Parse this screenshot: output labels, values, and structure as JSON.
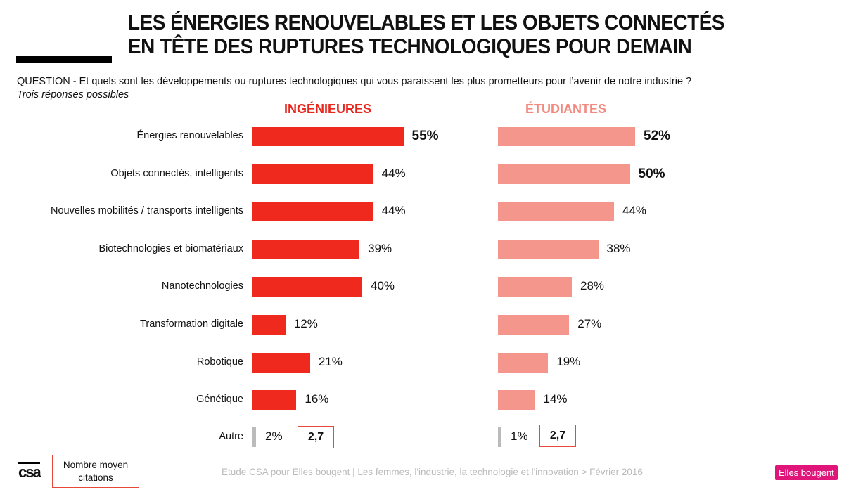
{
  "title_line1": "LES ÉNERGIES RENOUVELABLES ET LES OBJETS CONNECTÉS",
  "title_line2": "EN TÊTE DES RUPTURES TECHNOLOGIQUES POUR DEMAIN",
  "question": "QUESTION - Et quels sont les développements ou ruptures technologiques qui vous paraissent les plus prometteurs pour l’avenir de notre industrie ?",
  "subtitle": "Trois réponses possibles",
  "footer": "Etude CSA pour Elles bougent | Les femmes, l'industrie, la technologie et l'innovation > Février 2016",
  "legend_box": "Nombre moyen citations",
  "logo_left": "csa",
  "logo_right": "Elles bougent",
  "chart_data": {
    "type": "bar",
    "orientation": "horizontal",
    "categories": [
      "Énergies renouvelables",
      "Objets connectés, intelligents",
      "Nouvelles mobilités / transports intelligents",
      "Biotechnologies et biomatériaux",
      "Nanotechnologies",
      "Transformation digitale",
      "Robotique",
      "Génétique",
      "Autre"
    ],
    "series": [
      {
        "name": "INGÉNIEURES",
        "values": [
          55,
          44,
          44,
          39,
          40,
          12,
          21,
          16,
          2
        ],
        "labels": [
          "55%",
          "44%",
          "44%",
          "39%",
          "40%",
          "12%",
          "21%",
          "16%",
          "2%"
        ],
        "bold": [
          true,
          false,
          false,
          false,
          false,
          false,
          false,
          false,
          false
        ],
        "color": "#f0291f",
        "mean_citations": "2,7"
      },
      {
        "name": "ÉTUDIANTES",
        "values": [
          52,
          50,
          44,
          38,
          28,
          27,
          19,
          14,
          1
        ],
        "labels": [
          "52%",
          "50%",
          "44%",
          "38%",
          "28%",
          "27%",
          "19%",
          "14%",
          "1%"
        ],
        "bold": [
          true,
          true,
          false,
          false,
          false,
          false,
          false,
          false,
          false
        ],
        "color": "#f5968c",
        "mean_citations": "2,7"
      }
    ],
    "other_color": "#bbbbbb"
  }
}
